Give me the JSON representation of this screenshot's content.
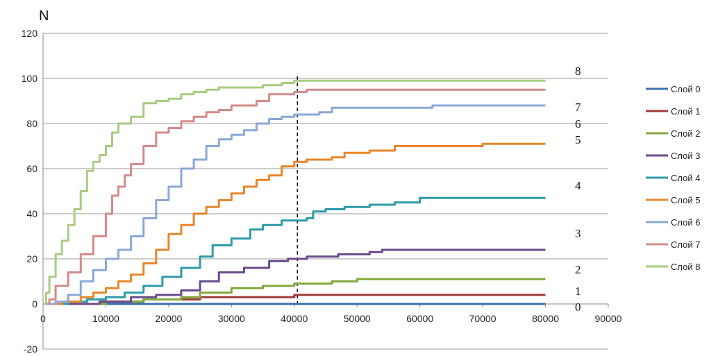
{
  "chart_data": {
    "type": "line",
    "ylabel": "N",
    "xlim": [
      0,
      90000
    ],
    "ylim": [
      -20,
      120
    ],
    "xticks": [
      0,
      10000,
      20000,
      30000,
      40000,
      50000,
      60000,
      70000,
      80000,
      90000
    ],
    "yticks": [
      -20,
      0,
      20,
      40,
      60,
      80,
      100,
      120
    ],
    "grid": "horizontal",
    "legend_position": "right",
    "vline_x": 40500,
    "series": [
      {
        "name": "Слой 0",
        "end_label": "0",
        "color": "#3a6fb0",
        "points": [
          [
            0,
            0
          ],
          [
            80000,
            0
          ]
        ]
      },
      {
        "name": "Слой 1",
        "end_label": "1",
        "color": "#a03a3a",
        "points": [
          [
            0,
            0
          ],
          [
            7000,
            0
          ],
          [
            9000,
            1
          ],
          [
            16000,
            2
          ],
          [
            25000,
            3
          ],
          [
            40000,
            4
          ],
          [
            80000,
            4
          ]
        ]
      },
      {
        "name": "Слой 2",
        "end_label": "2",
        "color": "#80a83c",
        "points": [
          [
            0,
            0
          ],
          [
            6000,
            0
          ],
          [
            10000,
            1
          ],
          [
            16000,
            2
          ],
          [
            22000,
            3
          ],
          [
            25000,
            5
          ],
          [
            30000,
            7
          ],
          [
            35000,
            8
          ],
          [
            40000,
            9
          ],
          [
            46000,
            10
          ],
          [
            50000,
            11
          ],
          [
            80000,
            11
          ]
        ]
      },
      {
        "name": "Слой 3",
        "end_label": "3",
        "color": "#6a4a8c",
        "points": [
          [
            0,
            0
          ],
          [
            5000,
            0
          ],
          [
            9000,
            1
          ],
          [
            14000,
            3
          ],
          [
            18000,
            4
          ],
          [
            22000,
            6
          ],
          [
            25000,
            10
          ],
          [
            28000,
            14
          ],
          [
            32000,
            16
          ],
          [
            36000,
            19
          ],
          [
            39000,
            20
          ],
          [
            42000,
            21
          ],
          [
            47000,
            22
          ],
          [
            52000,
            23
          ],
          [
            54000,
            24
          ],
          [
            80000,
            24
          ]
        ]
      },
      {
        "name": "Слой 4",
        "end_label": "4",
        "color": "#2d9aa8",
        "points": [
          [
            0,
            0
          ],
          [
            4000,
            1
          ],
          [
            7000,
            2
          ],
          [
            10000,
            3
          ],
          [
            13000,
            5
          ],
          [
            16000,
            8
          ],
          [
            19000,
            12
          ],
          [
            22000,
            16
          ],
          [
            25000,
            21
          ],
          [
            27000,
            26
          ],
          [
            30000,
            29
          ],
          [
            33000,
            33
          ],
          [
            35000,
            35
          ],
          [
            38000,
            37
          ],
          [
            40000,
            37
          ],
          [
            42000,
            38
          ],
          [
            43000,
            41
          ],
          [
            45000,
            42
          ],
          [
            48000,
            43
          ],
          [
            52000,
            44
          ],
          [
            56000,
            45
          ],
          [
            60000,
            47
          ],
          [
            80000,
            47
          ]
        ]
      },
      {
        "name": "Слой 5",
        "end_label": "5",
        "color": "#e8862a",
        "points": [
          [
            0,
            0
          ],
          [
            3000,
            1
          ],
          [
            6000,
            3
          ],
          [
            8000,
            5
          ],
          [
            10000,
            7
          ],
          [
            12000,
            10
          ],
          [
            14000,
            13
          ],
          [
            16000,
            18
          ],
          [
            18000,
            24
          ],
          [
            20000,
            31
          ],
          [
            22000,
            35
          ],
          [
            24000,
            40
          ],
          [
            26000,
            43
          ],
          [
            28000,
            46
          ],
          [
            30000,
            49
          ],
          [
            32000,
            52
          ],
          [
            34000,
            55
          ],
          [
            36000,
            57
          ],
          [
            38000,
            61
          ],
          [
            40000,
            63
          ],
          [
            42000,
            64
          ],
          [
            46000,
            65
          ],
          [
            48000,
            67
          ],
          [
            52000,
            68
          ],
          [
            56000,
            70
          ],
          [
            62000,
            70
          ],
          [
            70000,
            71
          ],
          [
            80000,
            71
          ]
        ]
      },
      {
        "name": "Слой 6",
        "end_label": "6",
        "color": "#8aa8d8",
        "points": [
          [
            0,
            0
          ],
          [
            2000,
            1
          ],
          [
            4000,
            4
          ],
          [
            6000,
            10
          ],
          [
            8000,
            15
          ],
          [
            10000,
            20
          ],
          [
            12000,
            24
          ],
          [
            14000,
            30
          ],
          [
            16000,
            38
          ],
          [
            18000,
            46
          ],
          [
            20000,
            52
          ],
          [
            22000,
            60
          ],
          [
            24000,
            64
          ],
          [
            26000,
            70
          ],
          [
            28000,
            73
          ],
          [
            30000,
            75
          ],
          [
            32000,
            77
          ],
          [
            34000,
            80
          ],
          [
            36000,
            82
          ],
          [
            38000,
            83
          ],
          [
            40000,
            84
          ],
          [
            42000,
            84
          ],
          [
            44000,
            85
          ],
          [
            46000,
            87
          ],
          [
            50000,
            87
          ],
          [
            60000,
            87
          ],
          [
            62000,
            88
          ],
          [
            80000,
            88
          ]
        ]
      },
      {
        "name": "Слой 7",
        "end_label": "7",
        "color": "#d48a8a",
        "points": [
          [
            0,
            0
          ],
          [
            1000,
            2
          ],
          [
            2000,
            8
          ],
          [
            4000,
            14
          ],
          [
            6000,
            22
          ],
          [
            8000,
            30
          ],
          [
            10000,
            40
          ],
          [
            11000,
            48
          ],
          [
            12000,
            52
          ],
          [
            13000,
            57
          ],
          [
            14000,
            62
          ],
          [
            16000,
            70
          ],
          [
            18000,
            76
          ],
          [
            20000,
            78
          ],
          [
            22000,
            81
          ],
          [
            24000,
            83
          ],
          [
            26000,
            85
          ],
          [
            28000,
            86
          ],
          [
            30000,
            88
          ],
          [
            32000,
            88
          ],
          [
            34000,
            90
          ],
          [
            36000,
            93
          ],
          [
            40000,
            94
          ],
          [
            42000,
            95
          ],
          [
            50000,
            95
          ],
          [
            80000,
            95
          ]
        ]
      },
      {
        "name": "Слой 8",
        "end_label": "8",
        "color": "#a8cc82",
        "points": [
          [
            0,
            0
          ],
          [
            500,
            5
          ],
          [
            1000,
            12
          ],
          [
            2000,
            22
          ],
          [
            3000,
            28
          ],
          [
            4000,
            35
          ],
          [
            5000,
            42
          ],
          [
            6000,
            50
          ],
          [
            7000,
            59
          ],
          [
            8000,
            63
          ],
          [
            9000,
            66
          ],
          [
            10000,
            70
          ],
          [
            11000,
            76
          ],
          [
            12000,
            80
          ],
          [
            14000,
            83
          ],
          [
            16000,
            89
          ],
          [
            18000,
            90
          ],
          [
            20000,
            91
          ],
          [
            22000,
            93
          ],
          [
            24000,
            94
          ],
          [
            26000,
            95
          ],
          [
            28000,
            96
          ],
          [
            30000,
            96
          ],
          [
            35000,
            97
          ],
          [
            38000,
            98
          ],
          [
            40000,
            99
          ],
          [
            45000,
            99
          ],
          [
            80000,
            99
          ]
        ]
      }
    ]
  }
}
